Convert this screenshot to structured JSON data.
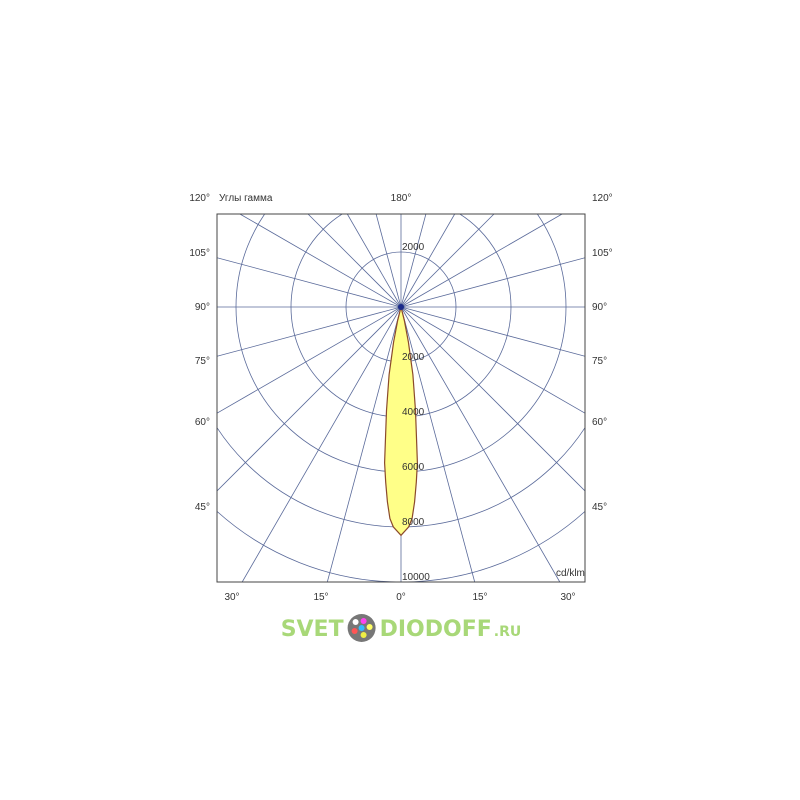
{
  "chart_data": {
    "type": "polar",
    "title": "",
    "angle_axis_label": "Углы гамма",
    "unit_label": "cd/klm",
    "radial_ticks": [
      2000,
      4000,
      6000,
      8000,
      10000
    ],
    "radial_tick_labels": [
      "2000",
      "4000",
      "6000",
      "8000",
      "10000"
    ],
    "upper_ring_label": "2000",
    "rmax": 10000,
    "angle_step_deg": 15,
    "angle_labels_left": [
      "120°",
      "105°",
      "90°",
      "75°",
      "60°",
      "45°"
    ],
    "angle_labels_right": [
      "120°",
      "105°",
      "90°",
      "75°",
      "60°",
      "45°"
    ],
    "angle_labels_bottom": [
      "30°",
      "15°",
      "0°",
      "15°",
      "30°"
    ],
    "angle_label_top": "180°",
    "series": [
      {
        "gamma_deg": [
          0,
          2,
          3,
          4,
          5,
          6,
          8,
          10,
          12,
          14,
          16
        ],
        "intensity": [
          8300,
          8000,
          7700,
          7100,
          6400,
          5700,
          3800,
          2500,
          1300,
          500,
          0
        ],
        "symmetric": true,
        "fill": "#ffff88",
        "stroke": "#8b4a2b"
      }
    ],
    "grid": true,
    "grid_color": "#5a6a9a"
  },
  "watermark": {
    "text_a": "SVET",
    "text_b": "DIODOFF",
    "text_c": ".RU",
    "color": "#a8d878"
  }
}
